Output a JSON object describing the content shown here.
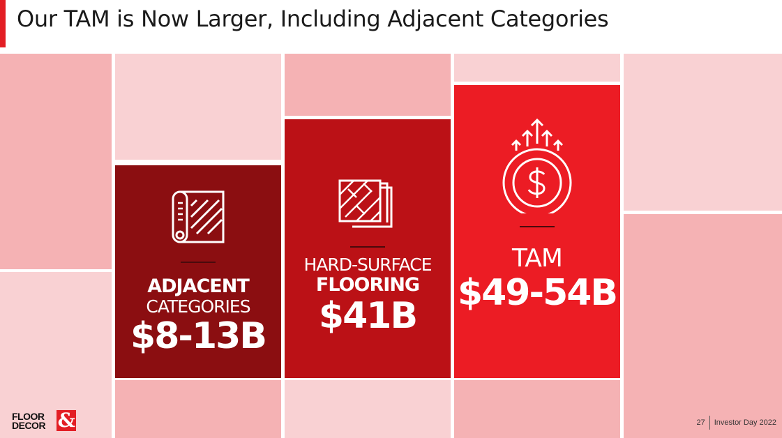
{
  "slide": {
    "title": "Our TAM is Now Larger, Including Adjacent Categories",
    "page_number": "27",
    "event": "Investor Day 2022"
  },
  "logo": {
    "line1": "FLOOR",
    "line2": "DECOR",
    "amp": "&"
  },
  "colors": {
    "accent": "#e31e24",
    "light_tile": "#f9d1d3",
    "mid_tile": "#f5b2b4"
  },
  "cards": [
    {
      "icon": "rolled-rug-icon",
      "color": "#8b0e11",
      "line1": "ADJACENT",
      "line2": "CATEGORIES",
      "value": "$8-13B"
    },
    {
      "icon": "floor-tiles-icon",
      "color": "#bb1116",
      "line1": "HARD-SURFACE",
      "line2": "FLOORING",
      "value": "$41B"
    },
    {
      "icon": "dollar-growth-icon",
      "color": "#ec1c24",
      "line1": "TAM",
      "value": "$49-54B"
    }
  ]
}
